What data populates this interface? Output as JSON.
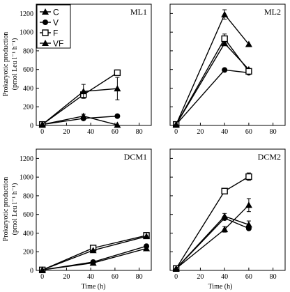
{
  "figure": {
    "ylabel_line1": "Prokaryotic production",
    "ylabel_line2": "(pmol Leu l⁻¹ h⁻¹)",
    "xlabel": "Time (h)",
    "legend": [
      "C",
      "V",
      "F",
      "VF"
    ]
  },
  "chart_data": [
    {
      "type": "line",
      "title": "ML1",
      "xlim": [
        -5,
        90
      ],
      "ylim": [
        0,
        1300
      ],
      "xticks": [
        0,
        20,
        40,
        60,
        80
      ],
      "yticks": [
        0,
        200,
        400,
        600,
        800,
        1000,
        1200
      ],
      "series": [
        {
          "name": "C",
          "marker": "triangle",
          "x": [
            0,
            34,
            62
          ],
          "y": [
            10,
            100,
            5
          ],
          "err": [
            0,
            20,
            0
          ]
        },
        {
          "name": "V",
          "marker": "circle",
          "x": [
            0,
            34,
            62
          ],
          "y": [
            10,
            75,
            100
          ],
          "err": [
            0,
            0,
            0
          ]
        },
        {
          "name": "F",
          "marker": "square",
          "x": [
            0,
            34,
            62
          ],
          "y": [
            10,
            330,
            565
          ],
          "err": [
            0,
            0,
            30
          ]
        },
        {
          "name": "VF",
          "marker": "triangle",
          "x": [
            0,
            34,
            62
          ],
          "y": [
            10,
            365,
            395
          ],
          "err": [
            0,
            75,
            120
          ]
        }
      ]
    },
    {
      "type": "line",
      "title": "ML2",
      "xlim": [
        -5,
        90
      ],
      "ylim": [
        0,
        1300
      ],
      "xticks": [
        0,
        20,
        40,
        60,
        80
      ],
      "yticks": [
        0,
        200,
        400,
        600,
        800,
        1000,
        1200
      ],
      "series": [
        {
          "name": "C",
          "marker": "triangle",
          "x": [
            0,
            40,
            60
          ],
          "y": [
            10,
            880,
            600
          ],
          "err": [
            0,
            0,
            0
          ]
        },
        {
          "name": "V",
          "marker": "circle",
          "x": [
            0,
            40,
            60
          ],
          "y": [
            10,
            595,
            565
          ],
          "err": [
            0,
            0,
            0
          ]
        },
        {
          "name": "F",
          "marker": "square",
          "x": [
            0,
            40,
            60
          ],
          "y": [
            10,
            930,
            580
          ],
          "err": [
            0,
            50,
            0
          ]
        },
        {
          "name": "VF",
          "marker": "triangle",
          "x": [
            0,
            40,
            60
          ],
          "y": [
            10,
            1190,
            870
          ],
          "err": [
            0,
            50,
            0
          ]
        }
      ]
    },
    {
      "type": "line",
      "title": "DCM1",
      "xlim": [
        -5,
        90
      ],
      "ylim": [
        0,
        1300
      ],
      "xticks": [
        0,
        20,
        40,
        60,
        80
      ],
      "yticks": [
        0,
        200,
        400,
        600,
        800,
        1000,
        1200
      ],
      "series": [
        {
          "name": "C",
          "marker": "triangle",
          "x": [
            0,
            42,
            86
          ],
          "y": [
            5,
            80,
            235
          ],
          "err": [
            0,
            0,
            0
          ]
        },
        {
          "name": "V",
          "marker": "circle",
          "x": [
            0,
            42,
            86
          ],
          "y": [
            5,
            90,
            260
          ],
          "err": [
            0,
            0,
            0
          ]
        },
        {
          "name": "F",
          "marker": "square",
          "x": [
            0,
            42,
            86
          ],
          "y": [
            5,
            240,
            375
          ],
          "err": [
            0,
            0,
            30
          ]
        },
        {
          "name": "VF",
          "marker": "triangle",
          "x": [
            0,
            42,
            86
          ],
          "y": [
            5,
            215,
            365
          ],
          "err": [
            0,
            0,
            0
          ]
        }
      ]
    },
    {
      "type": "line",
      "title": "DCM2",
      "xlim": [
        -5,
        90
      ],
      "ylim": [
        0,
        1300
      ],
      "xticks": [
        0,
        20,
        40,
        60,
        80
      ],
      "yticks": [
        0,
        200,
        400,
        600,
        800,
        1000,
        1200
      ],
      "series": [
        {
          "name": "C",
          "marker": "triangle",
          "x": [
            0,
            40,
            60
          ],
          "y": [
            20,
            580,
            490
          ],
          "err": [
            0,
            30,
            40
          ]
        },
        {
          "name": "V",
          "marker": "circle",
          "x": [
            0,
            40,
            60
          ],
          "y": [
            20,
            560,
            450
          ],
          "err": [
            0,
            0,
            0
          ]
        },
        {
          "name": "F",
          "marker": "square",
          "x": [
            0,
            40,
            60
          ],
          "y": [
            20,
            850,
            1005
          ],
          "err": [
            0,
            0,
            40
          ]
        },
        {
          "name": "VF",
          "marker": "triangle",
          "x": [
            0,
            40,
            60
          ],
          "y": [
            20,
            440,
            700
          ],
          "err": [
            0,
            30,
            70
          ]
        }
      ]
    }
  ]
}
